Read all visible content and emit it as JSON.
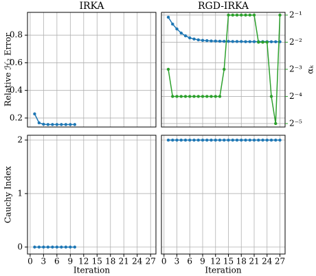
{
  "chart_data": [
    {
      "type": "line",
      "title": "IRKA",
      "ylabel": "Relative ℋ₂ Error",
      "x": [
        1,
        2,
        3,
        4,
        5,
        6,
        7,
        8,
        9,
        10
      ],
      "series": [
        {
          "color": "#1f77b4",
          "values": [
            0.23,
            0.165,
            0.155,
            0.153,
            0.153,
            0.153,
            0.153,
            0.153,
            0.153,
            0.153
          ]
        }
      ],
      "xlim": [
        -0.6,
        28.2
      ],
      "ylim": [
        0.135,
        0.965
      ],
      "yticks": [
        0.2,
        0.4,
        0.6,
        0.8
      ],
      "grid": true
    },
    {
      "type": "line",
      "title": "RGD-IRKA",
      "y2label": "αₖ",
      "x": [
        1,
        2,
        3,
        4,
        5,
        6,
        7,
        8,
        9,
        10,
        11,
        12,
        13,
        14,
        15,
        16,
        17,
        18,
        19,
        20,
        21,
        22,
        23,
        24,
        25,
        26,
        27
      ],
      "series": [
        {
          "color": "#1f77b4",
          "values": [
            0.93,
            0.88,
            0.845,
            0.815,
            0.795,
            0.78,
            0.772,
            0.766,
            0.762,
            0.76,
            0.758,
            0.757,
            0.756,
            0.755,
            0.755,
            0.754,
            0.754,
            0.754,
            0.753,
            0.753,
            0.753,
            0.753,
            0.753,
            0.753,
            0.752,
            0.752,
            0.752
          ]
        },
        {
          "color": "#2ca02c",
          "axis": "y2",
          "values": [
            0.125,
            0.0625,
            0.0625,
            0.0625,
            0.0625,
            0.0625,
            0.0625,
            0.0625,
            0.0625,
            0.0625,
            0.0625,
            0.0625,
            0.0625,
            0.125,
            0.5,
            0.5,
            0.5,
            0.5,
            0.5,
            0.5,
            0.5,
            0.25,
            0.25,
            0.25,
            0.0625,
            0.03125,
            0.5
          ]
        }
      ],
      "xlim": [
        -0.6,
        28.2
      ],
      "ylim": [
        0.135,
        0.965
      ],
      "y2lim": [
        0.0286,
        0.536
      ],
      "y2scale": "log",
      "y2ticks": [
        {
          "value": 0.5,
          "label": "2⁻¹"
        },
        {
          "value": 0.25,
          "label": "2⁻²"
        },
        {
          "value": 0.125,
          "label": "2⁻³"
        },
        {
          "value": 0.0625,
          "label": "2⁻⁴"
        },
        {
          "value": 0.03125,
          "label": "2⁻⁵"
        }
      ],
      "y2color": "#2ca02c",
      "grid": true
    },
    {
      "type": "line",
      "xlabel": "Iteration",
      "ylabel": "Cauchy Index",
      "x": [
        1,
        2,
        3,
        4,
        5,
        6,
        7,
        8,
        9,
        10
      ],
      "series": [
        {
          "color": "#1f77b4",
          "values": [
            0,
            0,
            0,
            0,
            0,
            0,
            0,
            0,
            0,
            0
          ]
        }
      ],
      "xlim": [
        -0.6,
        28.2
      ],
      "ylim": [
        -0.13,
        2.09
      ],
      "xticks": [
        0,
        3,
        6,
        9,
        12,
        15,
        18,
        21,
        24,
        27
      ],
      "yticks": [
        0,
        1,
        2
      ],
      "grid": true
    },
    {
      "type": "line",
      "xlabel": "Iteration",
      "x": [
        1,
        2,
        3,
        4,
        5,
        6,
        7,
        8,
        9,
        10,
        11,
        12,
        13,
        14,
        15,
        16,
        17,
        18,
        19,
        20,
        21,
        22,
        23,
        24,
        25,
        26,
        27
      ],
      "series": [
        {
          "color": "#1f77b4",
          "values": [
            2,
            2,
            2,
            2,
            2,
            2,
            2,
            2,
            2,
            2,
            2,
            2,
            2,
            2,
            2,
            2,
            2,
            2,
            2,
            2,
            2,
            2,
            2,
            2,
            2,
            2,
            2
          ]
        }
      ],
      "xlim": [
        -0.6,
        28.2
      ],
      "ylim": [
        -0.13,
        2.09
      ],
      "xticks": [
        0,
        3,
        6,
        9,
        12,
        15,
        18,
        21,
        24,
        27
      ],
      "grid": true
    }
  ]
}
